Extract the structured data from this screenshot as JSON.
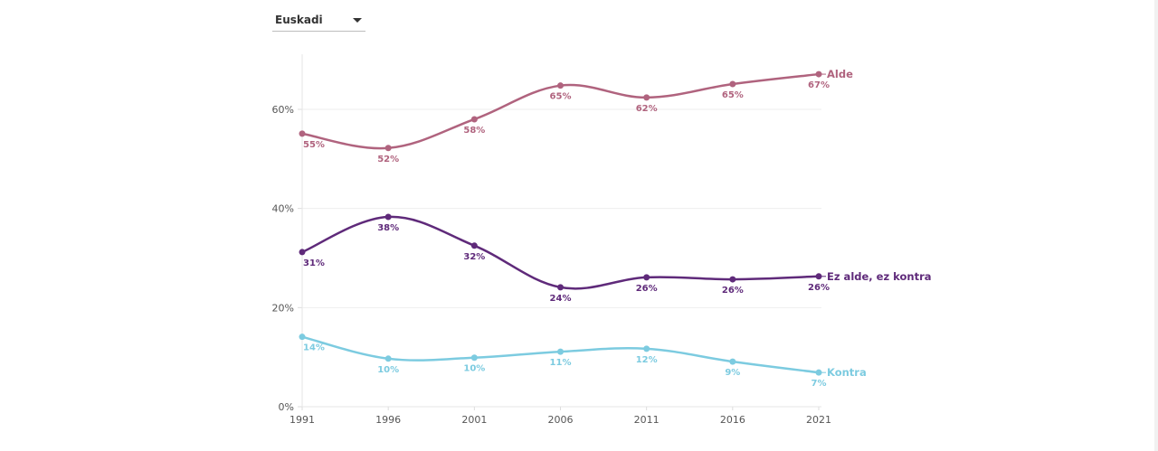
{
  "filter": {
    "selected": "Euskadi",
    "icon": "caret-down-icon"
  },
  "chart_data": {
    "type": "line",
    "title": "",
    "xlabel": "",
    "ylabel": "",
    "x": [
      "1991",
      "1996",
      "2001",
      "2006",
      "2011",
      "2016",
      "2021"
    ],
    "ylim": [
      0,
      70
    ],
    "yticks": [
      0,
      20,
      40,
      60
    ],
    "ytick_labels": [
      "0%",
      "20%",
      "40%",
      "60%"
    ],
    "grid": true,
    "legend": "inline-right",
    "series": [
      {
        "name": "Alde",
        "color": "#b0637e",
        "values": [
          55.1,
          52.2,
          58.0,
          64.8,
          62.4,
          65.1,
          67.1
        ],
        "labels": [
          "55%",
          "52%",
          "58%",
          "65%",
          "62%",
          "65%",
          "67%"
        ]
      },
      {
        "name": "Ez alde, ez kontra",
        "color": "#5f2a7a",
        "values": [
          31.2,
          38.3,
          32.5,
          24.1,
          26.1,
          25.7,
          26.3
        ],
        "labels": [
          "31%",
          "38%",
          "32%",
          "24%",
          "26%",
          "26%",
          "26%"
        ]
      },
      {
        "name": "Kontra",
        "color": "#7ccbe0",
        "values": [
          14.1,
          9.7,
          9.9,
          11.1,
          11.7,
          9.1,
          6.9
        ],
        "labels": [
          "14%",
          "10%",
          "10%",
          "11%",
          "12%",
          "9%",
          "7%"
        ]
      }
    ]
  }
}
